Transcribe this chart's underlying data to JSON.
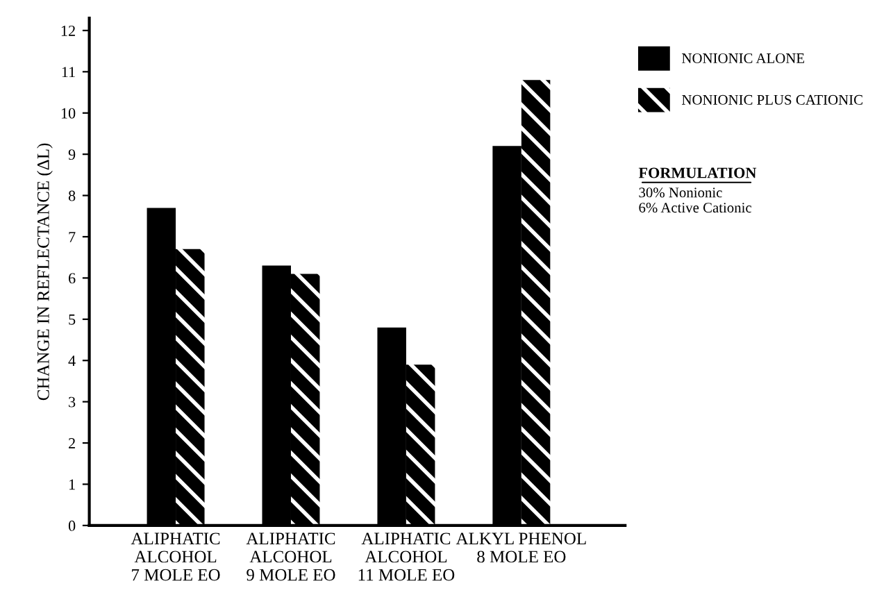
{
  "chart_data": {
    "type": "bar",
    "ylabel": "CHANGE IN REFLECTANCE (ΔL)",
    "categories": [
      "ALIPHATIC\nALCOHOL\n7 MOLE EO",
      "ALIPHATIC\nALCOHOL\n9 MOLE EO",
      "ALIPHATIC\nALCOHOL\n11 MOLE EO",
      "ALKYL PHENOL\n8 MOLE EO"
    ],
    "series": [
      {
        "name": "NONIONIC ALONE",
        "color": "#000000",
        "values": [
          7.7,
          6.3,
          4.8,
          9.2
        ]
      },
      {
        "name": "NONIONIC PLUS CATIONIC",
        "color": "#000000",
        "values": [
          6.7,
          6.1,
          3.9,
          10.8
        ]
      }
    ],
    "ylim": [
      0,
      12.3
    ],
    "yticks": [
      0,
      1,
      2,
      3,
      4,
      5,
      6,
      7,
      8,
      9,
      10,
      11,
      12
    ],
    "grid": false,
    "legend": "top right",
    "annotations": [
      "FORMULATION",
      "30% Nonionic\n6% Active Cationic"
    ]
  }
}
